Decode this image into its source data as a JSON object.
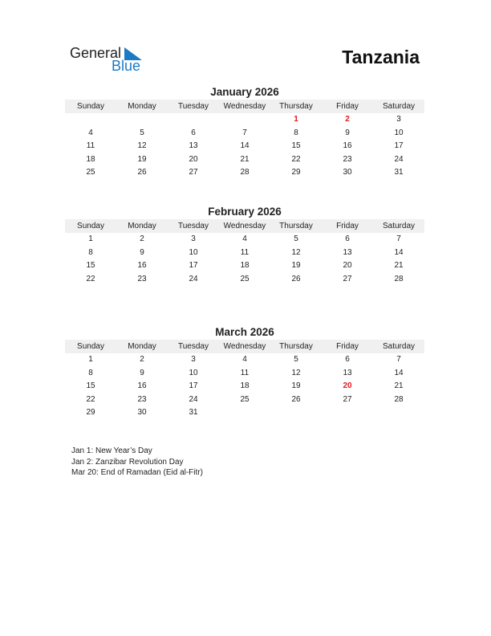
{
  "logo": {
    "text_general": "General",
    "text_blue": "Blue",
    "brand_color": "#1b7ac4"
  },
  "country": "Tanzania",
  "weekdays": [
    "Sunday",
    "Monday",
    "Tuesday",
    "Wednesday",
    "Thursday",
    "Friday",
    "Saturday"
  ],
  "holiday_color": "#e0191e",
  "months": [
    {
      "title": "January 2026",
      "weeks": [
        [
          "",
          "",
          "",
          "",
          "1",
          "2",
          "3"
        ],
        [
          "4",
          "5",
          "6",
          "7",
          "8",
          "9",
          "10"
        ],
        [
          "11",
          "12",
          "13",
          "14",
          "15",
          "16",
          "17"
        ],
        [
          "18",
          "19",
          "20",
          "21",
          "22",
          "23",
          "24"
        ],
        [
          "25",
          "26",
          "27",
          "28",
          "29",
          "30",
          "31"
        ]
      ],
      "holidays": [
        "1",
        "2"
      ]
    },
    {
      "title": "February 2026",
      "weeks": [
        [
          "1",
          "2",
          "3",
          "4",
          "5",
          "6",
          "7"
        ],
        [
          "8",
          "9",
          "10",
          "11",
          "12",
          "13",
          "14"
        ],
        [
          "15",
          "16",
          "17",
          "18",
          "19",
          "20",
          "21"
        ],
        [
          "22",
          "23",
          "24",
          "25",
          "26",
          "27",
          "28"
        ]
      ],
      "holidays": []
    },
    {
      "title": "March 2026",
      "weeks": [
        [
          "1",
          "2",
          "3",
          "4",
          "5",
          "6",
          "7"
        ],
        [
          "8",
          "9",
          "10",
          "11",
          "12",
          "13",
          "14"
        ],
        [
          "15",
          "16",
          "17",
          "18",
          "19",
          "20",
          "21"
        ],
        [
          "22",
          "23",
          "24",
          "25",
          "26",
          "27",
          "28"
        ],
        [
          "29",
          "30",
          "31",
          "",
          "",
          "",
          ""
        ]
      ],
      "holidays": [
        "20"
      ]
    }
  ],
  "notes": [
    "Jan 1: New Year’s Day",
    "Jan 2: Zanzibar Revolution Day",
    "Mar 20: End of Ramadan (Eid al-Fitr)"
  ]
}
